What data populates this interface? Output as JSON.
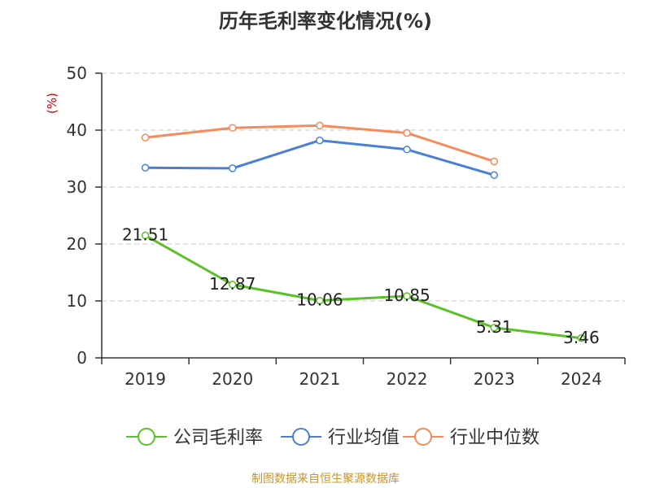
{
  "title": "历年毛利率变化情况(%)",
  "source_note": "制图数据来自恒生聚源数据库",
  "colors": {
    "company": "#5cc126",
    "industry_avg": "#4a7fd6",
    "industry_median": "#f58b5a",
    "axis": "#333333",
    "grid": "#c8c8c8",
    "unit_label": "#cc0000"
  },
  "chart_data": {
    "type": "line",
    "ylabel": "(%)",
    "ylim": [
      0,
      50
    ],
    "yticks": [
      0,
      10,
      20,
      30,
      40,
      50
    ],
    "grid": "horizontal dashed",
    "legend_position": "bottom",
    "categories": [
      "2019",
      "2020",
      "2021",
      "2022",
      "2023",
      "2024"
    ],
    "series": [
      {
        "name": "公司毛利率",
        "color_key": "company",
        "values": [
          21.51,
          12.87,
          10.06,
          10.85,
          5.31,
          3.46
        ],
        "value_labels": [
          "21.51",
          "12.87",
          "10.06",
          "10.85",
          "5.31",
          "3.46"
        ]
      },
      {
        "name": "行业均值",
        "color_key": "industry_avg",
        "values": [
          33.4,
          33.3,
          38.2,
          36.6,
          32.1,
          null
        ]
      },
      {
        "name": "行业中位数",
        "color_key": "industry_median",
        "values": [
          38.7,
          40.4,
          40.8,
          39.5,
          34.5,
          null
        ]
      }
    ]
  }
}
